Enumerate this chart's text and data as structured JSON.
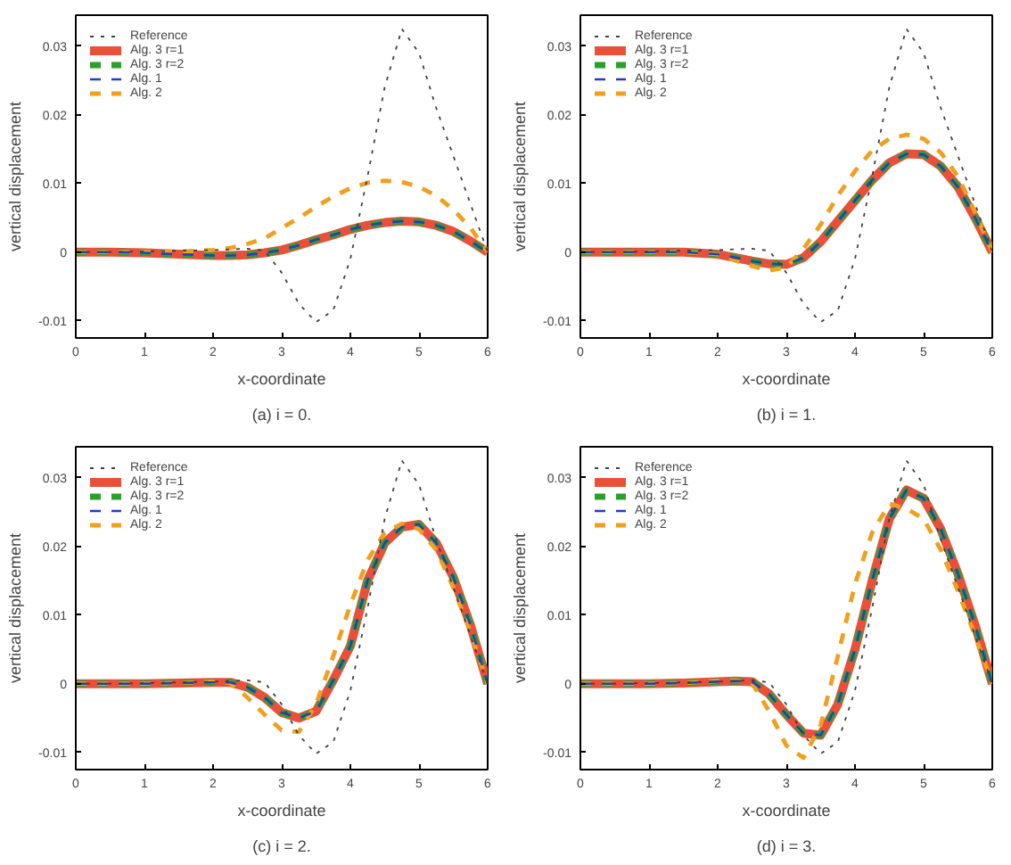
{
  "chart_data": [
    {
      "type": "line",
      "xlabel": "x-coordinate",
      "ylabel": "vertical displacement",
      "annotations": [
        "(a) i = 0."
      ],
      "xlim": [
        0,
        6
      ],
      "ylim": [
        -0.0125,
        0.0345
      ],
      "xticks": [
        0,
        1,
        2,
        3,
        4,
        5,
        6
      ],
      "yticks": [
        -0.01,
        0,
        0.01,
        0.02,
        0.03
      ],
      "grid": false,
      "legend": "top left",
      "x": [
        0,
        0.5,
        1,
        1.5,
        2,
        2.25,
        2.5,
        2.75,
        3,
        3.25,
        3.5,
        3.75,
        4,
        4.25,
        4.5,
        4.75,
        5,
        5.25,
        5.5,
        5.75,
        6
      ],
      "series": [
        {
          "name": "Reference",
          "color": "#404040",
          "line_style": "dotted",
          "values": [
            0,
            0,
            0.0001,
            0.0002,
            0.0003,
            0.0004,
            0.0005,
            0.0002,
            -0.003,
            -0.0075,
            -0.0102,
            -0.0085,
            -0.001,
            0.011,
            0.024,
            0.0325,
            0.029,
            0.021,
            0.014,
            0.007,
            0
          ]
        },
        {
          "name": "Alg. 3 r=1",
          "color": "#e8503a",
          "line_style": "solid",
          "values": [
            0,
            0,
            -0.0001,
            -0.0003,
            -0.0005,
            -0.0005,
            -0.0004,
            -0.0001,
            0.0003,
            0.001,
            0.0018,
            0.0025,
            0.0033,
            0.0039,
            0.0043,
            0.0045,
            0.0044,
            0.0039,
            0.003,
            0.0016,
            0
          ]
        },
        {
          "name": "Alg. 3 r=2",
          "color": "#2ca02c",
          "line_style": "dashed",
          "values": [
            0,
            0,
            -0.0001,
            -0.0003,
            -0.0005,
            -0.0005,
            -0.0004,
            -0.0001,
            0.0003,
            0.001,
            0.0018,
            0.0025,
            0.0033,
            0.0039,
            0.0043,
            0.0045,
            0.0044,
            0.0039,
            0.003,
            0.0016,
            0
          ]
        },
        {
          "name": "Alg. 1",
          "color": "#2b3ab8",
          "line_style": "dashed",
          "values": [
            0,
            0,
            -0.0001,
            -0.0003,
            -0.0005,
            -0.0005,
            -0.0004,
            -0.0001,
            0.0003,
            0.001,
            0.0018,
            0.0025,
            0.0033,
            0.0039,
            0.0043,
            0.0045,
            0.0044,
            0.0039,
            0.003,
            0.0016,
            0
          ]
        },
        {
          "name": "Alg. 2",
          "color": "#f0a020",
          "line_style": "dashed",
          "values": [
            0,
            0,
            0,
            0.0001,
            0.0003,
            0.0006,
            0.0012,
            0.002,
            0.0035,
            0.005,
            0.0066,
            0.0081,
            0.0093,
            0.0101,
            0.0104,
            0.0102,
            0.0095,
            0.0082,
            0.0062,
            0.0035,
            0
          ]
        }
      ]
    },
    {
      "type": "line",
      "xlabel": "x-coordinate",
      "ylabel": "vertical displacement",
      "annotations": [
        "(b) i = 1."
      ],
      "xlim": [
        0,
        6
      ],
      "ylim": [
        -0.0125,
        0.0345
      ],
      "xticks": [
        0,
        1,
        2,
        3,
        4,
        5,
        6
      ],
      "yticks": [
        -0.01,
        0,
        0.01,
        0.02,
        0.03
      ],
      "grid": false,
      "legend": "top left",
      "x": [
        0,
        0.5,
        1,
        1.5,
        2,
        2.25,
        2.5,
        2.75,
        3,
        3.25,
        3.5,
        3.75,
        4,
        4.25,
        4.5,
        4.75,
        5,
        5.25,
        5.5,
        5.75,
        6
      ],
      "series": [
        {
          "name": "Reference",
          "color": "#404040",
          "line_style": "dotted",
          "values": [
            0,
            0,
            0.0001,
            0.0002,
            0.0003,
            0.0004,
            0.0005,
            0.0002,
            -0.003,
            -0.0075,
            -0.0102,
            -0.0085,
            -0.001,
            0.011,
            0.024,
            0.0325,
            0.029,
            0.021,
            0.014,
            0.007,
            0
          ]
        },
        {
          "name": "Alg. 3 r=1",
          "color": "#e8503a",
          "line_style": "solid",
          "values": [
            0,
            0,
            0,
            0,
            -0.0003,
            -0.0008,
            -0.0013,
            -0.0017,
            -0.0018,
            -0.0008,
            0.0015,
            0.0045,
            0.0075,
            0.0105,
            0.013,
            0.0143,
            0.0142,
            0.0125,
            0.0095,
            0.005,
            0
          ]
        },
        {
          "name": "Alg. 3 r=2",
          "color": "#2ca02c",
          "line_style": "dashed",
          "values": [
            0,
            0,
            0,
            0,
            -0.0003,
            -0.0008,
            -0.0013,
            -0.0017,
            -0.0018,
            -0.0008,
            0.0015,
            0.0045,
            0.0075,
            0.0105,
            0.013,
            0.0143,
            0.0142,
            0.0125,
            0.0095,
            0.005,
            0
          ]
        },
        {
          "name": "Alg. 1",
          "color": "#2b3ab8",
          "line_style": "dashed",
          "values": [
            0,
            0,
            0,
            0,
            -0.0003,
            -0.0008,
            -0.0013,
            -0.0017,
            -0.0018,
            -0.0008,
            0.0015,
            0.0045,
            0.0075,
            0.0105,
            0.013,
            0.0143,
            0.0142,
            0.0125,
            0.0095,
            0.005,
            0
          ]
        },
        {
          "name": "Alg. 2",
          "color": "#f0a020",
          "line_style": "dashed",
          "values": [
            0,
            0,
            0,
            0,
            -0.0003,
            -0.0012,
            -0.002,
            -0.0027,
            -0.0022,
            0.0005,
            0.004,
            0.0082,
            0.0118,
            0.0148,
            0.0165,
            0.0171,
            0.0165,
            0.0145,
            0.011,
            0.0058,
            0
          ]
        }
      ]
    },
    {
      "type": "line",
      "xlabel": "x-coordinate",
      "ylabel": "vertical displacement",
      "annotations": [
        "(c) i = 2."
      ],
      "xlim": [
        0,
        6
      ],
      "ylim": [
        -0.0125,
        0.0345
      ],
      "xticks": [
        0,
        1,
        2,
        3,
        4,
        5,
        6
      ],
      "yticks": [
        -0.01,
        0,
        0.01,
        0.02,
        0.03
      ],
      "grid": false,
      "legend": "top left",
      "x": [
        0,
        0.5,
        1,
        1.5,
        2,
        2.25,
        2.5,
        2.75,
        3,
        3.25,
        3.5,
        3.75,
        4,
        4.25,
        4.5,
        4.75,
        5,
        5.25,
        5.5,
        5.75,
        6
      ],
      "series": [
        {
          "name": "Reference",
          "color": "#404040",
          "line_style": "dotted",
          "values": [
            0,
            0,
            0.0001,
            0.0002,
            0.0003,
            0.0004,
            0.0005,
            0.0002,
            -0.003,
            -0.0075,
            -0.0102,
            -0.0085,
            -0.001,
            0.011,
            0.024,
            0.0325,
            0.029,
            0.021,
            0.014,
            0.007,
            0
          ]
        },
        {
          "name": "Alg. 3 r=1",
          "color": "#e8503a",
          "line_style": "solid",
          "values": [
            0,
            0,
            0,
            0.0001,
            0.0002,
            0.0002,
            -0.0005,
            -0.002,
            -0.0042,
            -0.005,
            -0.004,
            0.0005,
            0.0055,
            0.015,
            0.0205,
            0.0228,
            0.0232,
            0.0205,
            0.0155,
            0.0085,
            0
          ]
        },
        {
          "name": "Alg. 3 r=2",
          "color": "#2ca02c",
          "line_style": "dashed",
          "values": [
            0,
            0,
            0,
            0.0001,
            0.0002,
            0.0002,
            -0.0005,
            -0.002,
            -0.0042,
            -0.005,
            -0.004,
            0.0005,
            0.0055,
            0.015,
            0.0205,
            0.0228,
            0.0232,
            0.0205,
            0.0155,
            0.0085,
            0
          ]
        },
        {
          "name": "Alg. 1",
          "color": "#2b3ab8",
          "line_style": "dashed",
          "values": [
            0,
            0,
            0,
            0.0001,
            0.0002,
            0.0002,
            -0.0005,
            -0.002,
            -0.0042,
            -0.005,
            -0.004,
            0.0005,
            0.0055,
            0.015,
            0.0205,
            0.0228,
            0.0232,
            0.0205,
            0.0155,
            0.0085,
            0
          ]
        },
        {
          "name": "Alg. 2",
          "color": "#f0a020",
          "line_style": "dashed",
          "values": [
            0,
            0,
            0,
            0.0001,
            0.0003,
            0.0001,
            -0.002,
            -0.0045,
            -0.0068,
            -0.007,
            -0.003,
            0.004,
            0.0115,
            0.018,
            0.022,
            0.0233,
            0.0225,
            0.0195,
            0.014,
            0.0075,
            0
          ]
        }
      ]
    },
    {
      "type": "line",
      "xlabel": "x-coordinate",
      "ylabel": "vertical displacement",
      "annotations": [
        "(d) i = 3."
      ],
      "xlim": [
        0,
        6
      ],
      "ylim": [
        -0.0125,
        0.0345
      ],
      "xticks": [
        0,
        1,
        2,
        3,
        4,
        5,
        6
      ],
      "yticks": [
        -0.01,
        0,
        0.01,
        0.02,
        0.03
      ],
      "grid": false,
      "legend": "top left",
      "x": [
        0,
        0.5,
        1,
        1.5,
        2,
        2.25,
        2.5,
        2.75,
        3,
        3.25,
        3.5,
        3.75,
        4,
        4.25,
        4.5,
        4.75,
        5,
        5.25,
        5.5,
        5.75,
        6
      ],
      "series": [
        {
          "name": "Reference",
          "color": "#404040",
          "line_style": "dotted",
          "values": [
            0,
            0,
            0.0001,
            0.0002,
            0.0003,
            0.0004,
            0.0005,
            0.0002,
            -0.003,
            -0.0075,
            -0.0102,
            -0.0085,
            -0.001,
            0.011,
            0.024,
            0.0325,
            0.029,
            0.021,
            0.014,
            0.007,
            0
          ]
        },
        {
          "name": "Alg. 3 r=1",
          "color": "#e8503a",
          "line_style": "solid",
          "values": [
            0,
            0,
            0,
            0.0001,
            0.0003,
            0.0004,
            0.0003,
            -0.0015,
            -0.0045,
            -0.0072,
            -0.0075,
            -0.003,
            0.005,
            0.015,
            0.024,
            0.0282,
            0.027,
            0.0225,
            0.016,
            0.0085,
            0
          ]
        },
        {
          "name": "Alg. 3 r=2",
          "color": "#2ca02c",
          "line_style": "dashed",
          "values": [
            0,
            0,
            0,
            0.0001,
            0.0003,
            0.0004,
            0.0003,
            -0.0015,
            -0.0045,
            -0.0072,
            -0.0075,
            -0.003,
            0.005,
            0.015,
            0.024,
            0.0282,
            0.027,
            0.0225,
            0.016,
            0.0085,
            0
          ]
        },
        {
          "name": "Alg. 1",
          "color": "#2b3ab8",
          "line_style": "dashed",
          "values": [
            0,
            0,
            0,
            0.0001,
            0.0003,
            0.0004,
            0.0003,
            -0.0015,
            -0.0045,
            -0.0072,
            -0.0075,
            -0.003,
            0.005,
            0.015,
            0.024,
            0.0282,
            0.027,
            0.0225,
            0.016,
            0.0085,
            0
          ]
        },
        {
          "name": "Alg. 2",
          "color": "#f0a020",
          "line_style": "dashed",
          "values": [
            0,
            0,
            0,
            0.0001,
            0.0004,
            0.0005,
            0.0001,
            -0.004,
            -0.009,
            -0.0108,
            -0.006,
            0.004,
            0.0145,
            0.022,
            0.0262,
            0.0255,
            0.024,
            0.0195,
            0.0135,
            0.007,
            0
          ]
        }
      ]
    }
  ]
}
